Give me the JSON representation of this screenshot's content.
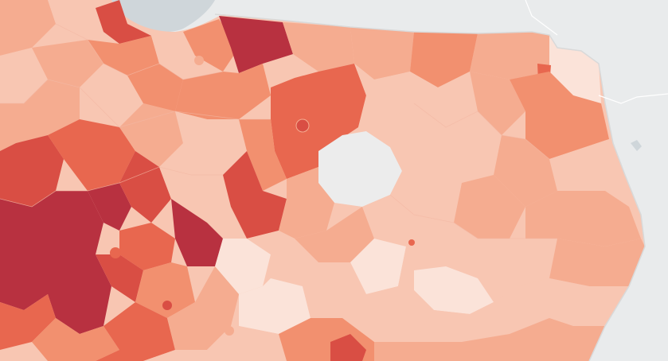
{
  "map": {
    "colors": {
      "background": "#e9ebec",
      "sea": "#cfd6da",
      "sea_highlight": "#c4ccd1",
      "no_data": "#ececec",
      "border_line": "#d9a291",
      "class_1_lightest": "#fbe3d9",
      "class_2": "#f8c6b2",
      "class_3": "#f5ac90",
      "class_4": "#f2906f",
      "class_5": "#e8674f",
      "class_6": "#d94e44",
      "class_7_darkest": "#b83140"
    },
    "features": [
      "choropleth-districts",
      "national-border",
      "baltic-sea",
      "neighbouring-countries",
      "no-data-district"
    ]
  }
}
